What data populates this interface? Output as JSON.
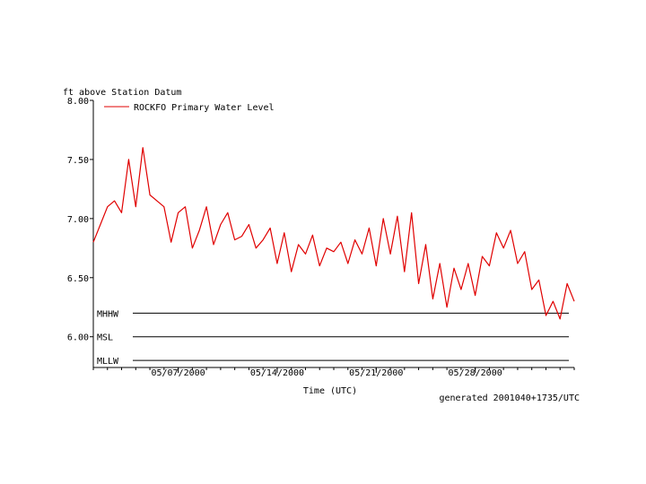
{
  "chart_data": {
    "type": "line",
    "ylabel": "ft above Station Datum",
    "xlabel": "Time (UTC)",
    "footer": "generated 2001040+1735/UTC",
    "ylim": [
      5.74,
      8.0
    ],
    "y_ticks": [
      {
        "value": 8.0,
        "label": "8.00"
      },
      {
        "value": 7.5,
        "label": "7.50"
      },
      {
        "value": 7.0,
        "label": "7.00"
      },
      {
        "value": 6.5,
        "label": "6.50"
      },
      {
        "value": 6.0,
        "label": "6.00"
      }
    ],
    "xlim": [
      "2000-05-01",
      "2000-06-04"
    ],
    "x_ticks": [
      {
        "value": "2000-05-07",
        "label": "05/07/2000"
      },
      {
        "value": "2000-05-14",
        "label": "05/14/2000"
      },
      {
        "value": "2000-05-21",
        "label": "05/21/2000"
      },
      {
        "value": "2000-05-28",
        "label": "05/28/2000"
      }
    ],
    "reference_lines": [
      {
        "label": "MHHW",
        "value": 6.2
      },
      {
        "label": "MSL",
        "value": 6.0
      },
      {
        "label": "MLLW",
        "value": 5.8
      }
    ],
    "series": [
      {
        "name": "ROCKFO Primary Water Level",
        "color": "#e00000",
        "x": [
          "2000-05-01T00:00",
          "2000-05-01T12:00",
          "2000-05-02T00:00",
          "2000-05-02T12:00",
          "2000-05-03T00:00",
          "2000-05-03T12:00",
          "2000-05-04T00:00",
          "2000-05-04T12:00",
          "2000-05-05T00:00",
          "2000-05-05T12:00",
          "2000-05-06T00:00",
          "2000-05-06T12:00",
          "2000-05-07T00:00",
          "2000-05-07T12:00",
          "2000-05-08T00:00",
          "2000-05-08T12:00",
          "2000-05-09T00:00",
          "2000-05-09T12:00",
          "2000-05-10T00:00",
          "2000-05-10T12:00",
          "2000-05-11T00:00",
          "2000-05-11T12:00",
          "2000-05-12T00:00",
          "2000-05-12T12:00",
          "2000-05-13T00:00",
          "2000-05-13T12:00",
          "2000-05-14T00:00",
          "2000-05-14T12:00",
          "2000-05-15T00:00",
          "2000-05-15T12:00",
          "2000-05-16T00:00",
          "2000-05-16T12:00",
          "2000-05-17T00:00",
          "2000-05-17T12:00",
          "2000-05-18T00:00",
          "2000-05-18T12:00",
          "2000-05-19T00:00",
          "2000-05-19T12:00",
          "2000-05-20T00:00",
          "2000-05-20T12:00",
          "2000-05-21T00:00",
          "2000-05-21T12:00",
          "2000-05-22T00:00",
          "2000-05-22T12:00",
          "2000-05-23T00:00",
          "2000-05-23T12:00",
          "2000-05-24T00:00",
          "2000-05-24T12:00",
          "2000-05-25T00:00",
          "2000-05-25T12:00",
          "2000-05-26T00:00",
          "2000-05-26T12:00",
          "2000-05-27T00:00",
          "2000-05-27T12:00",
          "2000-05-28T00:00",
          "2000-05-28T12:00",
          "2000-05-29T00:00",
          "2000-05-29T12:00",
          "2000-05-30T00:00",
          "2000-05-30T12:00",
          "2000-05-31T00:00",
          "2000-05-31T12:00",
          "2000-06-01T00:00",
          "2000-06-01T12:00",
          "2000-06-02T00:00",
          "2000-06-02T12:00",
          "2000-06-03T00:00",
          "2000-06-03T12:00",
          "2000-06-04T00:00"
        ],
        "values": [
          6.8,
          6.95,
          7.1,
          7.15,
          7.05,
          7.5,
          7.1,
          7.6,
          7.2,
          7.15,
          7.1,
          6.8,
          7.05,
          7.1,
          6.75,
          6.9,
          7.1,
          6.78,
          6.95,
          7.05,
          6.82,
          6.85,
          6.95,
          6.75,
          6.82,
          6.92,
          6.62,
          6.88,
          6.55,
          6.78,
          6.7,
          6.86,
          6.6,
          6.75,
          6.72,
          6.8,
          6.62,
          6.82,
          6.7,
          6.92,
          6.6,
          7.0,
          6.7,
          7.02,
          6.55,
          7.05,
          6.45,
          6.78,
          6.32,
          6.62,
          6.25,
          6.58,
          6.4,
          6.62,
          6.35,
          6.68,
          6.6,
          6.88,
          6.75,
          6.9,
          6.62,
          6.72,
          6.4,
          6.48,
          6.18,
          6.3,
          6.15,
          6.45,
          6.3
        ]
      }
    ]
  }
}
